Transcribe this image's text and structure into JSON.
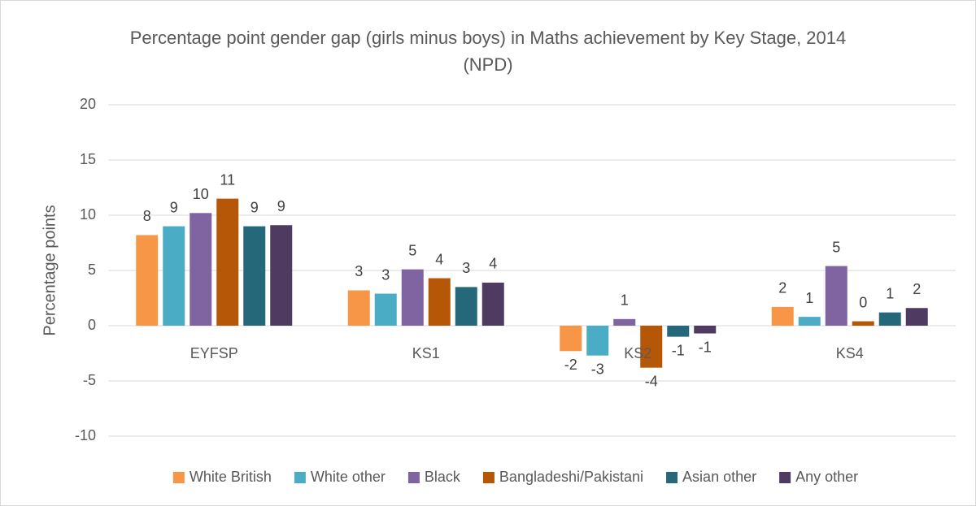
{
  "chart_data": {
    "type": "bar",
    "title": "Percentage point gender gap (girls minus boys) in Maths achievement by Key Stage, 2014 (NPD)",
    "y_label": "Percentage points",
    "categories": [
      "EYFSP",
      "KS1",
      "KS2",
      "KS4"
    ],
    "series": [
      {
        "name": "White British",
        "color": "#f79646",
        "values": [
          8.2,
          3.2,
          -2.3,
          1.7
        ],
        "value_labels": [
          "8",
          "3",
          "-2",
          "2"
        ]
      },
      {
        "name": "White other",
        "color": "#4bacc6",
        "values": [
          9.0,
          2.9,
          -2.7,
          0.8
        ],
        "value_labels": [
          "9",
          "3",
          "-3",
          "1"
        ]
      },
      {
        "name": "Black",
        "color": "#8064a2",
        "values": [
          10.2,
          5.1,
          0.6,
          5.4
        ],
        "value_labels": [
          "10",
          "5",
          "1",
          "5"
        ]
      },
      {
        "name": "Bangladeshi/Pakistani",
        "color": "#b65708",
        "values": [
          11.5,
          4.3,
          -3.8,
          0.4
        ],
        "value_labels": [
          "11",
          "4",
          "-4",
          "0"
        ]
      },
      {
        "name": "Asian other",
        "color": "#25687a",
        "values": [
          9.0,
          3.5,
          -1.0,
          1.2
        ],
        "value_labels": [
          "9",
          "3",
          "-1",
          "1"
        ]
      },
      {
        "name": "Any other",
        "color": "#4f3a62",
        "values": [
          9.1,
          3.9,
          -0.7,
          1.6
        ],
        "value_labels": [
          "9",
          "4",
          "-1",
          "2"
        ]
      }
    ],
    "ylim": [
      -10,
      20
    ],
    "yticks": [
      -10,
      -5,
      0,
      5,
      10,
      15,
      20
    ],
    "grid": true,
    "legend": "bottom"
  }
}
